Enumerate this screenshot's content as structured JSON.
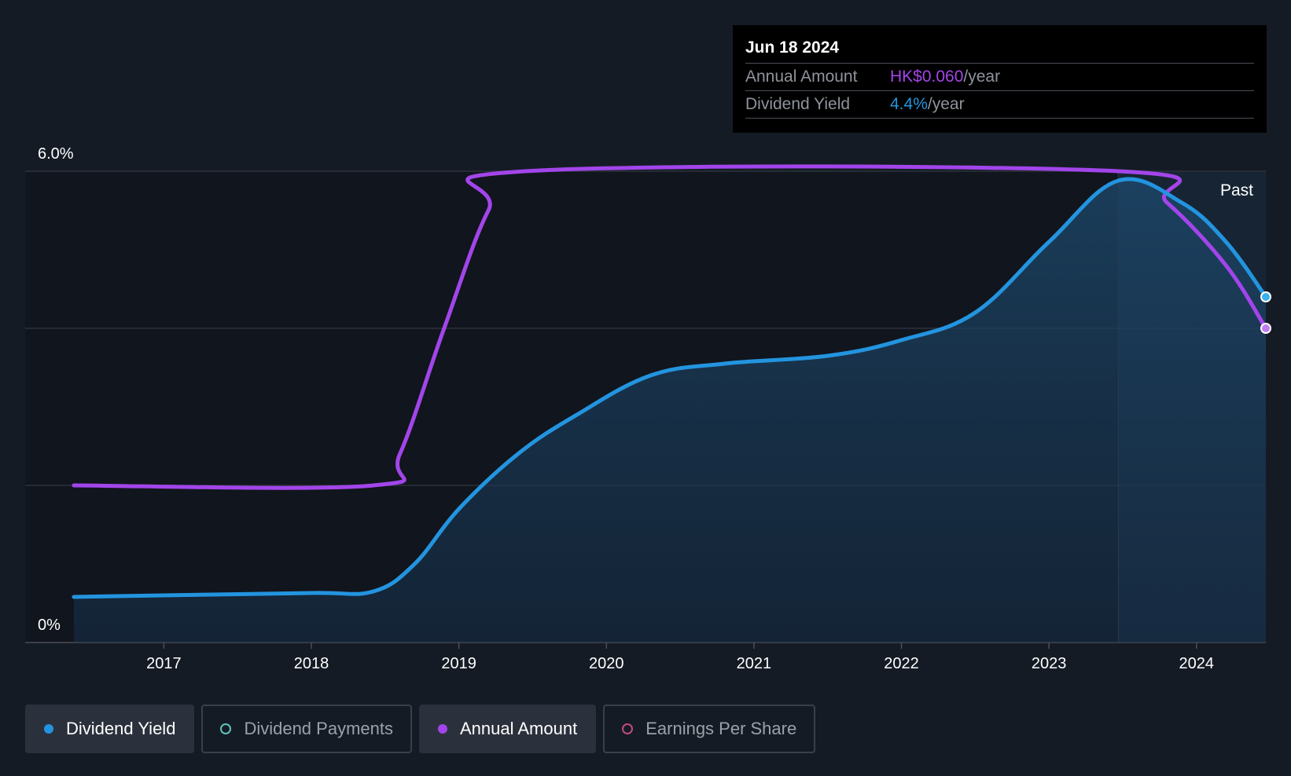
{
  "tooltip": {
    "date": "Jun 18 2024",
    "rows": [
      {
        "label": "Annual Amount",
        "value": "HK$0.060",
        "unit": "/year",
        "color": "#a245ea"
      },
      {
        "label": "Dividend Yield",
        "value": "4.4%",
        "unit": "/year",
        "color": "#2394df"
      }
    ]
  },
  "legend": [
    {
      "label": "Dividend Yield",
      "active": true,
      "marker": "filled-blue"
    },
    {
      "label": "Dividend Payments",
      "active": false,
      "marker": "ring-teal"
    },
    {
      "label": "Annual Amount",
      "active": true,
      "marker": "filled-purple"
    },
    {
      "label": "Earnings Per Share",
      "active": false,
      "marker": "ring-pink"
    }
  ],
  "chart_data": {
    "type": "line",
    "y_axis": {
      "min": 0,
      "max": 6.0,
      "unit": "%",
      "labels": [
        "6.0%",
        "0%"
      ]
    },
    "x_axis": {
      "min": 2016.06,
      "max": 2024.47,
      "ticks": [
        "2017",
        "2018",
        "2019",
        "2020",
        "2021",
        "2022",
        "2023",
        "2024"
      ]
    },
    "past_label": "Past",
    "past_start": 2023.47,
    "grid": true,
    "series": [
      {
        "name": "Dividend Yield",
        "color": "#2394df",
        "area": true,
        "points": [
          [
            2016.39,
            0.58
          ],
          [
            2017.0,
            0.6
          ],
          [
            2018.0,
            0.63
          ],
          [
            2018.42,
            0.65
          ],
          [
            2018.7,
            1.0
          ],
          [
            2019.0,
            1.7
          ],
          [
            2019.4,
            2.4
          ],
          [
            2019.8,
            2.9
          ],
          [
            2020.3,
            3.4
          ],
          [
            2020.8,
            3.55
          ],
          [
            2021.5,
            3.65
          ],
          [
            2022.0,
            3.85
          ],
          [
            2022.5,
            4.2
          ],
          [
            2023.0,
            5.1
          ],
          [
            2023.47,
            5.88
          ],
          [
            2023.9,
            5.6
          ],
          [
            2024.2,
            5.1
          ],
          [
            2024.47,
            4.4
          ]
        ]
      },
      {
        "name": "Annual Amount",
        "color": "#a245ea",
        "area": false,
        "points": [
          [
            2016.39,
            2.0
          ],
          [
            2018.42,
            2.0
          ],
          [
            2018.6,
            2.4
          ],
          [
            2018.9,
            4.0
          ],
          [
            2019.2,
            5.5
          ],
          [
            2019.45,
            6.0
          ],
          [
            2023.47,
            6.0
          ],
          [
            2023.8,
            5.6
          ],
          [
            2024.2,
            4.8
          ],
          [
            2024.47,
            4.0
          ]
        ]
      }
    ]
  }
}
